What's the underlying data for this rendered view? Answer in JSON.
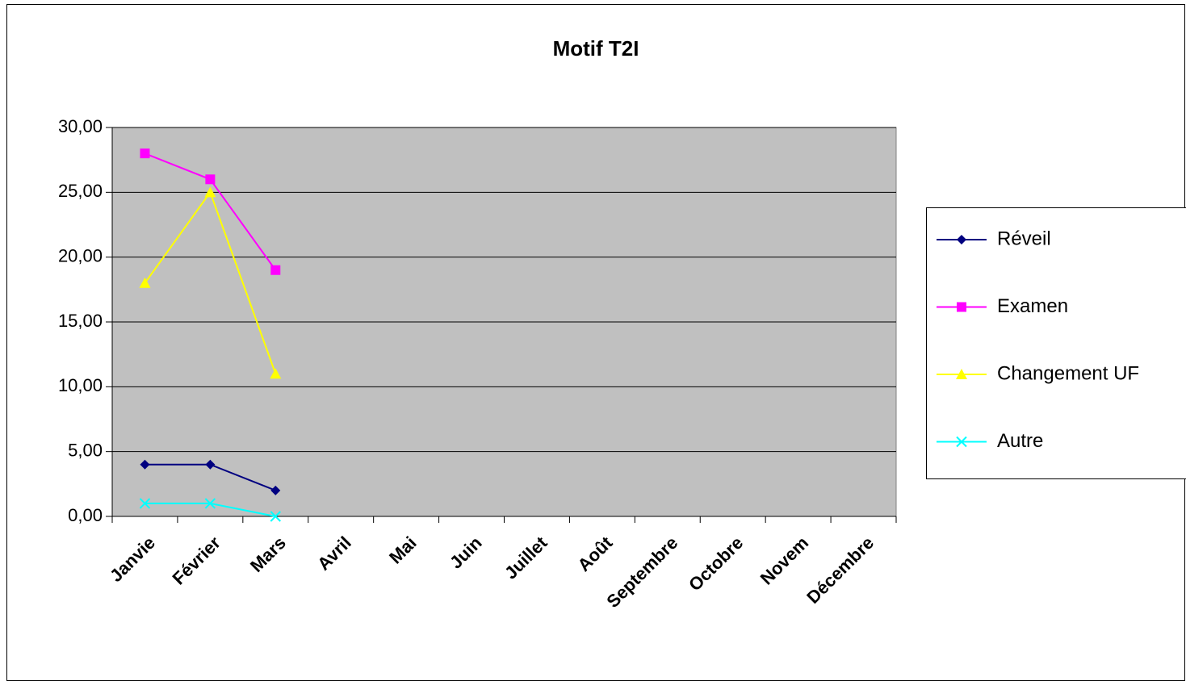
{
  "chart_data": {
    "type": "line",
    "title": "Motif T2I",
    "categories": [
      "Janvie",
      "Février",
      "Mars",
      "Avril",
      "Mai",
      "Juin",
      "Juillet",
      "Août",
      "Septembre",
      "Octobre",
      "Novem",
      "Décembre"
    ],
    "series": [
      {
        "name": "Réveil",
        "color": "#000080",
        "marker": "diamond",
        "values": [
          4,
          4,
          2,
          null,
          null,
          null,
          null,
          null,
          null,
          null,
          null,
          null
        ]
      },
      {
        "name": "Examen",
        "color": "#ff00ff",
        "marker": "square",
        "values": [
          28,
          26,
          19,
          null,
          null,
          null,
          null,
          null,
          null,
          null,
          null,
          null
        ]
      },
      {
        "name": "Changement UF",
        "color": "#ffff00",
        "marker": "triangle",
        "values": [
          18,
          25,
          11,
          null,
          null,
          null,
          null,
          null,
          null,
          null,
          null,
          null
        ]
      },
      {
        "name": "Autre",
        "color": "#00ffff",
        "marker": "x",
        "values": [
          1,
          1,
          0,
          null,
          null,
          null,
          null,
          null,
          null,
          null,
          null,
          null
        ]
      }
    ],
    "ylim": [
      0,
      30
    ],
    "yticks": [
      {
        "value": 0,
        "label": "0,00"
      },
      {
        "value": 5,
        "label": "5,00"
      },
      {
        "value": 10,
        "label": "10,00"
      },
      {
        "value": 15,
        "label": "15,00"
      },
      {
        "value": 20,
        "label": "20,00"
      },
      {
        "value": 25,
        "label": "25,00"
      },
      {
        "value": 30,
        "label": "30,00"
      }
    ],
    "grid": true,
    "legend": "right",
    "plot_background": "#c0c0c0"
  }
}
